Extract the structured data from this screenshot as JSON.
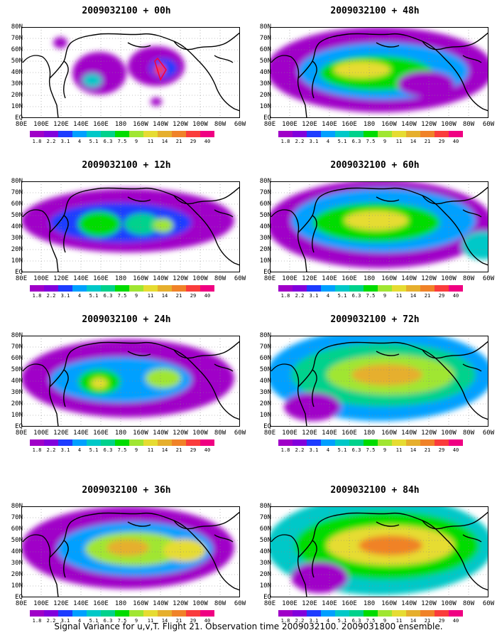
{
  "panels": [
    {
      "title": "2009032100 + 00h"
    },
    {
      "title": "2009032100 + 48h"
    },
    {
      "title": "2009032100 + 12h"
    },
    {
      "title": "2009032100 + 60h"
    },
    {
      "title": "2009032100 + 24h"
    },
    {
      "title": "2009032100 + 72h"
    },
    {
      "title": "2009032100 + 36h"
    },
    {
      "title": "2009032100 + 84h"
    }
  ],
  "lat_labels": [
    "80N",
    "70N",
    "60N",
    "50N",
    "40N",
    "30N",
    "20N",
    "10N",
    "EQ"
  ],
  "lon_labels": [
    "80E",
    "100E",
    "120E",
    "140E",
    "160E",
    "180",
    "160W",
    "140W",
    "120W",
    "100W",
    "80W",
    "60W"
  ],
  "colorbar": {
    "labels": [
      "1.8",
      "2.2",
      "3.1",
      "4",
      "5.1",
      "6.3",
      "7.5",
      "9",
      "11",
      "14",
      "21",
      "29",
      "40"
    ],
    "colors": [
      "#a000c8",
      "#8200dc",
      "#1e3cff",
      "#00a0ff",
      "#00c8c8",
      "#00d28c",
      "#00dc00",
      "#a0e632",
      "#e6dc32",
      "#e6af2d",
      "#f08228",
      "#fa3c3c",
      "#f00082"
    ]
  },
  "caption": "Signal Variance for u,v,T. Flight 21. Observation time 2009032100. 2009031800 ensemble."
}
